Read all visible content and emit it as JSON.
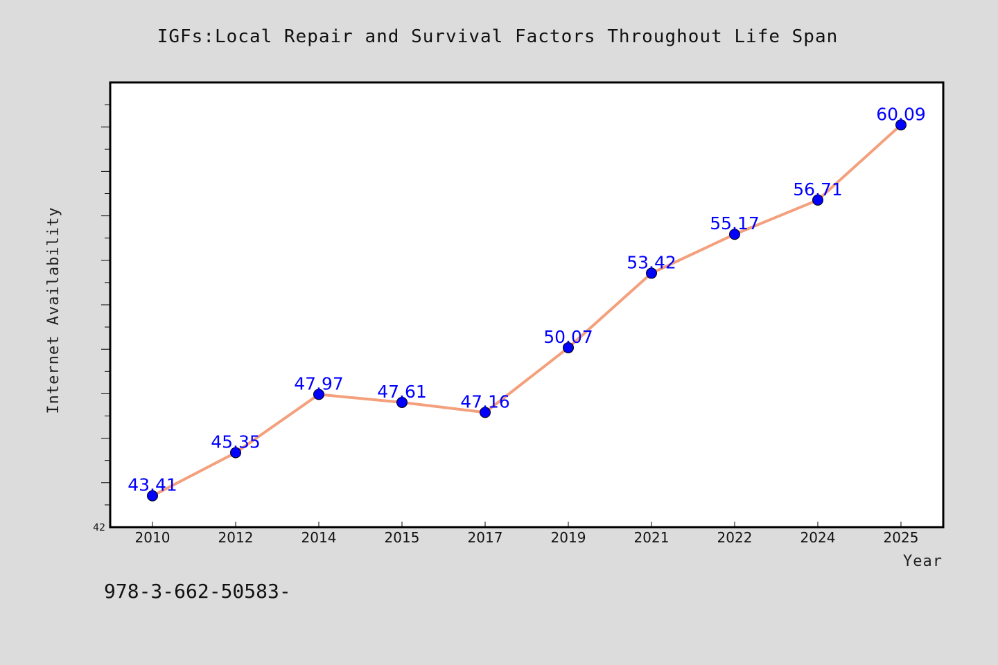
{
  "chart_data": {
    "type": "line",
    "title": "IGFs:Local Repair and Survival Factors Throughout Life Span",
    "xlabel": "Year",
    "ylabel": "Internet Availability",
    "categories": [
      "2010",
      "2012",
      "2014",
      "2015",
      "2017",
      "2019",
      "2021",
      "2022",
      "2024",
      "2025"
    ],
    "series": [
      {
        "values": [
          43.41,
          45.35,
          47.97,
          47.61,
          47.16,
          50.07,
          53.42,
          55.17,
          56.71,
          60.09
        ]
      }
    ],
    "data_labels": [
      "43.41",
      "45.35",
      "47.97",
      "47.61",
      "47.16",
      "50.07",
      "53.42",
      "55.17",
      "56.71",
      "60.09"
    ],
    "ylim": [
      42,
      62
    ],
    "y_tick_label": "42",
    "grid": false,
    "line_color": "#f4a07c",
    "marker_color": "#0000ff",
    "label_color": "#0000ff",
    "background": "#dcdcdc",
    "plot_background": "#ffffff"
  },
  "footer_text": "978-3-662-50583-"
}
